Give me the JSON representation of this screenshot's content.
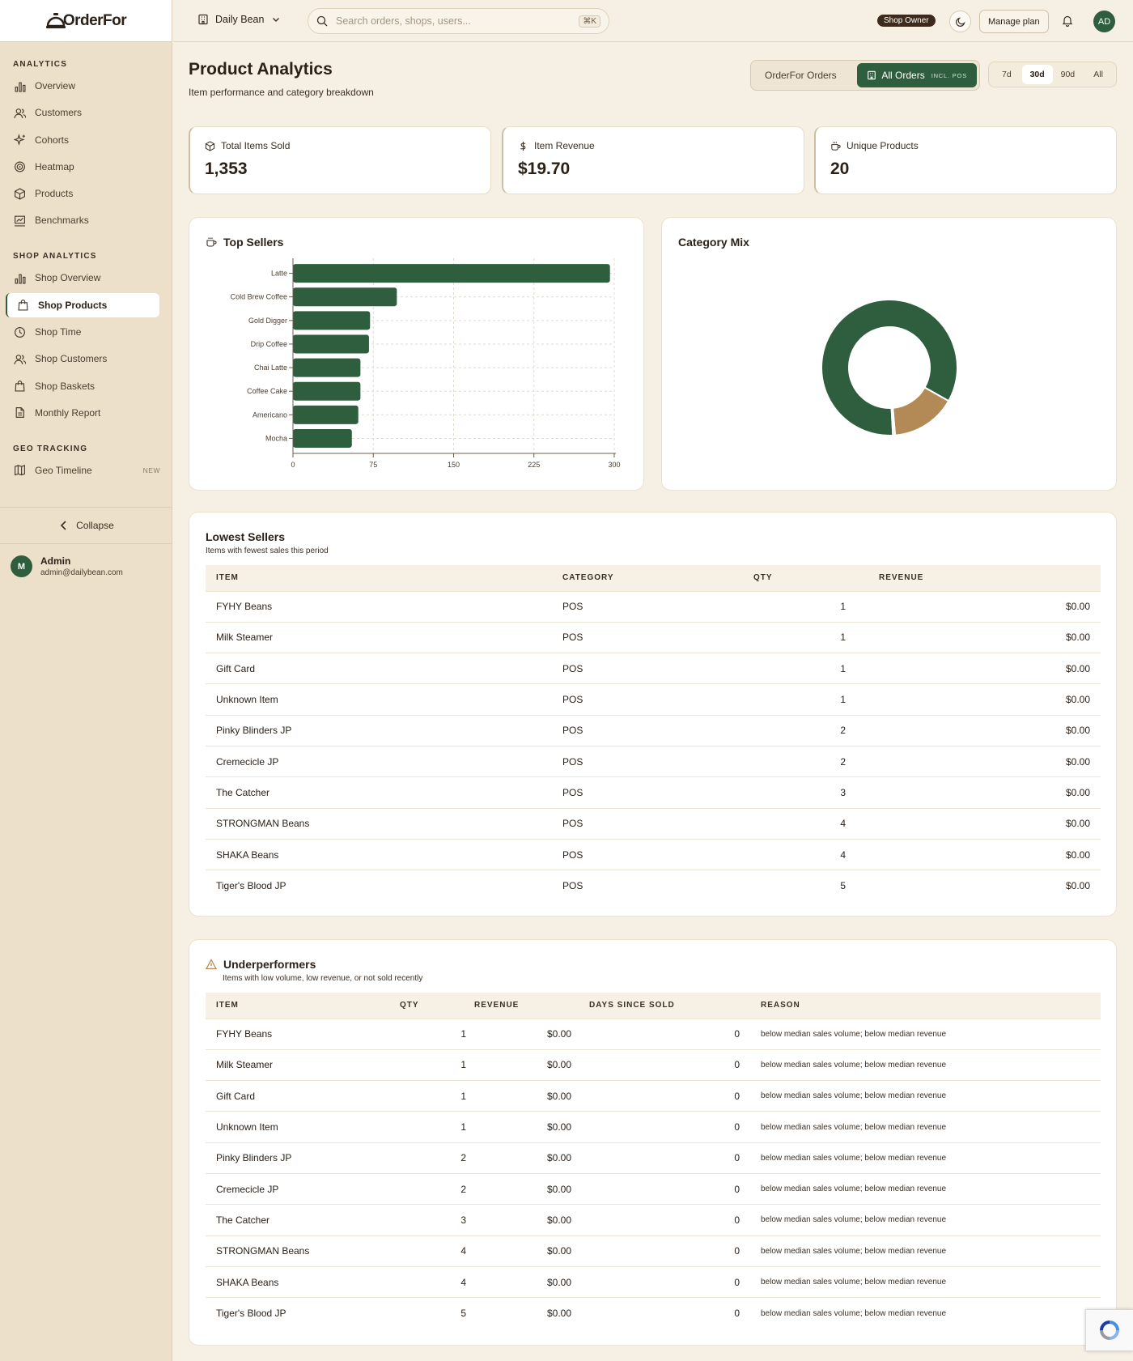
{
  "app": {
    "logo_text": "OrderFor"
  },
  "sidebar": {
    "sections": [
      {
        "label": "Analytics",
        "items": [
          {
            "label": "Overview",
            "icon": "bar-chart-icon"
          },
          {
            "label": "Customers",
            "icon": "users-icon"
          },
          {
            "label": "Cohorts",
            "icon": "sparkles-icon"
          },
          {
            "label": "Heatmap",
            "icon": "target-icon"
          },
          {
            "label": "Products",
            "icon": "package-icon"
          },
          {
            "label": "Benchmarks",
            "icon": "presentation-chart-icon"
          }
        ]
      },
      {
        "label": "Shop Analytics",
        "items": [
          {
            "label": "Shop Overview",
            "icon": "bar-chart-icon"
          },
          {
            "label": "Shop Products",
            "icon": "shopping-bag-icon",
            "active": true
          },
          {
            "label": "Shop Time",
            "icon": "clock-icon"
          },
          {
            "label": "Shop Customers",
            "icon": "users-icon"
          },
          {
            "label": "Shop Baskets",
            "icon": "shopping-bag-icon"
          },
          {
            "label": "Monthly Report",
            "icon": "file-icon"
          }
        ]
      },
      {
        "label": "Geo Tracking",
        "items": [
          {
            "label": "Geo Timeline",
            "icon": "map-icon",
            "badge": "NEW"
          }
        ]
      }
    ],
    "collapse_label": "Collapse",
    "user": {
      "initial": "M",
      "name": "Admin",
      "email": "admin@dailybean.com"
    }
  },
  "topbar": {
    "shop_name": "Daily Bean",
    "search_placeholder": "Search orders, shops, users...",
    "search_shortcut": "⌘K",
    "role_badge": "Shop Owner",
    "manage_plan": "Manage plan",
    "avatar": "AD"
  },
  "page": {
    "title": "Product Analytics",
    "subtitle": "Item performance and category breakdown",
    "source_options": [
      "OrderFor Orders",
      "All Orders"
    ],
    "source_active_tag": "INCL. POS",
    "ranges": [
      "7d",
      "30d",
      "90d",
      "All"
    ],
    "active_range": "30d"
  },
  "kpis": [
    {
      "label": "Total Items Sold",
      "value": "1,353",
      "icon": "package-icon"
    },
    {
      "label": "Item Revenue",
      "value": "$19.70",
      "icon": "dollar-icon"
    },
    {
      "label": "Unique Products",
      "value": "20",
      "icon": "coffee-cup-icon"
    }
  ],
  "top_sellers": {
    "title": "Top Sellers",
    "icon": "coffee-cup-icon"
  },
  "category_mix": {
    "title": "Category Mix"
  },
  "chart_data": [
    {
      "type": "bar",
      "orientation": "horizontal",
      "title": "Top Sellers",
      "categories": [
        "Latte",
        "Cold Brew Coffee",
        "Gold Digger",
        "Drip Coffee",
        "Chai Latte",
        "Coffee Cake",
        "Americano",
        "Mocha"
      ],
      "values": [
        296,
        97,
        72,
        71,
        63,
        63,
        61,
        55
      ],
      "xticks": [
        0,
        75,
        150,
        225,
        300
      ],
      "xlim": [
        0,
        300
      ],
      "grid": true,
      "color": "#2e5e3e"
    },
    {
      "type": "pie",
      "donut": true,
      "title": "Category Mix",
      "values": [
        84,
        15.5,
        0.5
      ],
      "colors": [
        "#2e5e3e",
        "#b38a55",
        "#d9cdb8"
      ]
    }
  ],
  "lowest_sellers": {
    "title": "Lowest Sellers",
    "subtitle": "Items with fewest sales this period",
    "columns": [
      "Item",
      "Category",
      "Qty",
      "Revenue"
    ],
    "rows": [
      [
        "FYHY Beans",
        "POS",
        "1",
        "$0.00"
      ],
      [
        "Milk Steamer",
        "POS",
        "1",
        "$0.00"
      ],
      [
        "Gift Card",
        "POS",
        "1",
        "$0.00"
      ],
      [
        "Unknown Item",
        "POS",
        "1",
        "$0.00"
      ],
      [
        "Pinky Blinders JP",
        "POS",
        "2",
        "$0.00"
      ],
      [
        "Cremecicle JP",
        "POS",
        "2",
        "$0.00"
      ],
      [
        "The Catcher",
        "POS",
        "3",
        "$0.00"
      ],
      [
        "STRONGMAN Beans",
        "POS",
        "4",
        "$0.00"
      ],
      [
        "SHAKA Beans",
        "POS",
        "4",
        "$0.00"
      ],
      [
        "Tiger's Blood JP",
        "POS",
        "5",
        "$0.00"
      ]
    ]
  },
  "underperformers": {
    "title": "Underperformers",
    "subtitle": "Items with low volume, low revenue, or not sold recently",
    "icon": "warning-icon",
    "columns": [
      "Item",
      "Qty",
      "Revenue",
      "Days Since Sold",
      "Reason"
    ],
    "rows": [
      [
        "FYHY Beans",
        "1",
        "$0.00",
        "0",
        "below median sales volume; below median revenue"
      ],
      [
        "Milk Steamer",
        "1",
        "$0.00",
        "0",
        "below median sales volume; below median revenue"
      ],
      [
        "Gift Card",
        "1",
        "$0.00",
        "0",
        "below median sales volume; below median revenue"
      ],
      [
        "Unknown Item",
        "1",
        "$0.00",
        "0",
        "below median sales volume; below median revenue"
      ],
      [
        "Pinky Blinders JP",
        "2",
        "$0.00",
        "0",
        "below median sales volume; below median revenue"
      ],
      [
        "Cremecicle JP",
        "2",
        "$0.00",
        "0",
        "below median sales volume; below median revenue"
      ],
      [
        "The Catcher",
        "3",
        "$0.00",
        "0",
        "below median sales volume; below median revenue"
      ],
      [
        "STRONGMAN Beans",
        "4",
        "$0.00",
        "0",
        "below median sales volume; below median revenue"
      ],
      [
        "SHAKA Beans",
        "4",
        "$0.00",
        "0",
        "below median sales volume; below median revenue"
      ],
      [
        "Tiger's Blood JP",
        "5",
        "$0.00",
        "0",
        "below median sales volume; below median revenue"
      ]
    ]
  }
}
